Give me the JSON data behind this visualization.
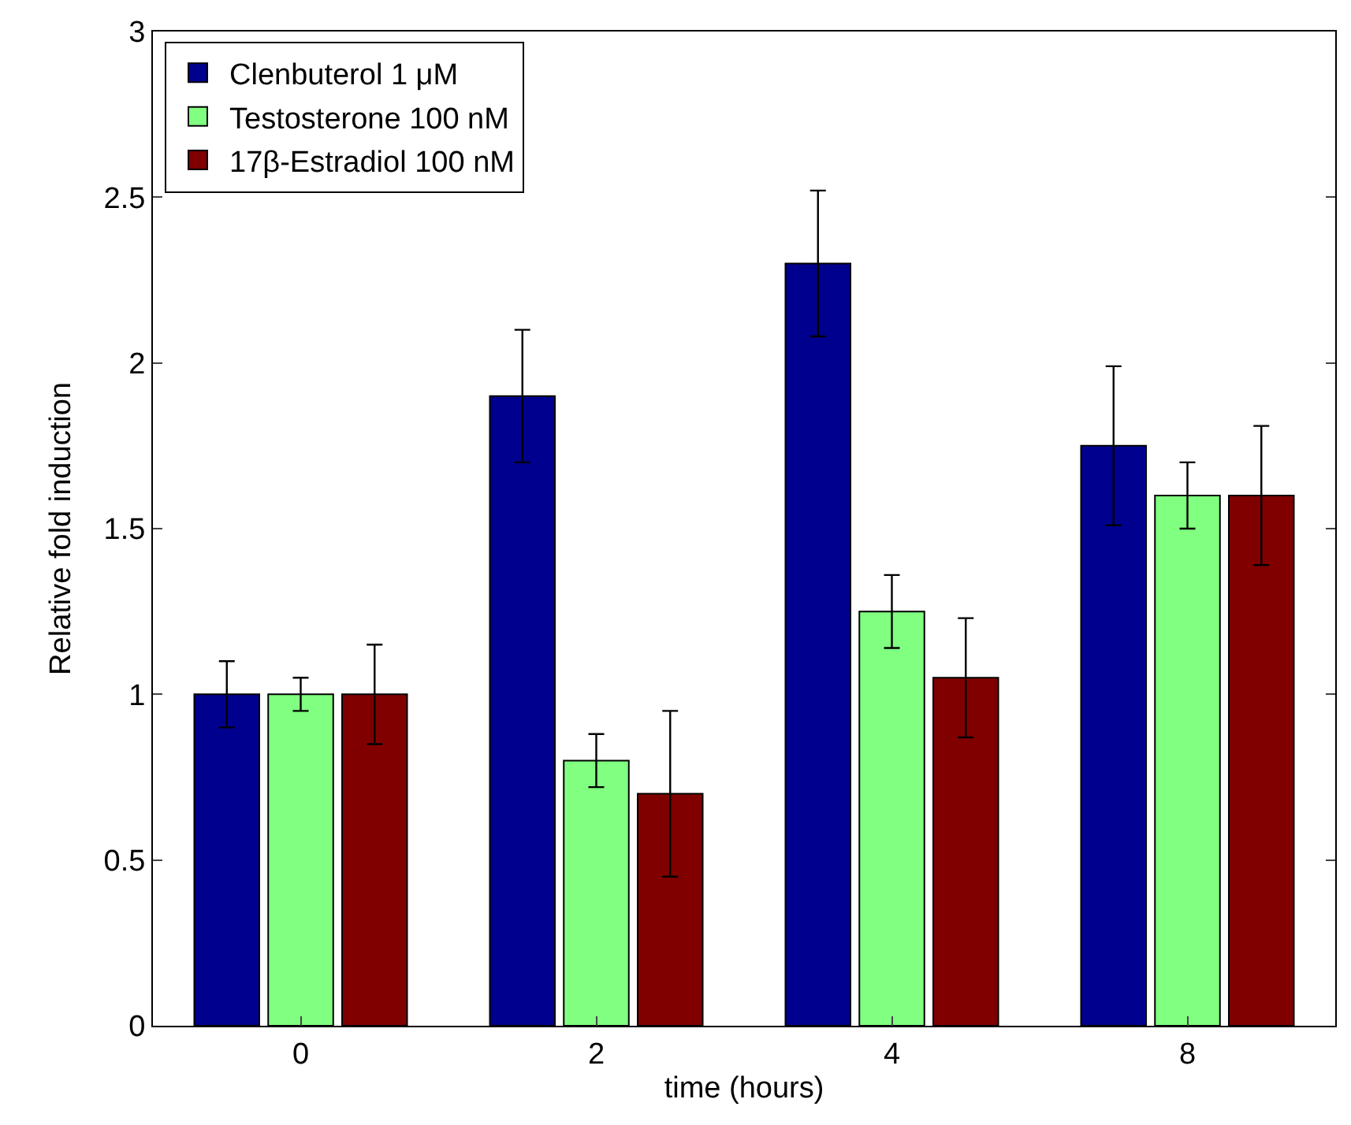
{
  "chart_data": {
    "type": "bar",
    "xlabel": "time (hours)",
    "ylabel": "Relative fold induction",
    "categories": [
      "0",
      "2",
      "4",
      "8"
    ],
    "series": [
      {
        "name": "Clenbuterol 1 μM",
        "color": "#00008f",
        "values": [
          1.0,
          1.9,
          2.3,
          1.75
        ],
        "errors": [
          [
            0.9,
            1.1
          ],
          [
            1.7,
            2.1
          ],
          [
            2.08,
            2.52
          ],
          [
            1.51,
            1.99
          ]
        ]
      },
      {
        "name": "Testosterone 100 nM",
        "color": "#80ff80",
        "values": [
          1.0,
          0.8,
          1.25,
          1.6
        ],
        "errors": [
          [
            0.95,
            1.05
          ],
          [
            0.72,
            0.88
          ],
          [
            1.14,
            1.36
          ],
          [
            1.5,
            1.7
          ]
        ]
      },
      {
        "name": "17β-Estradiol 100 nM",
        "color": "#800000",
        "values": [
          1.0,
          0.7,
          1.05,
          1.6
        ],
        "errors": [
          [
            0.85,
            1.15
          ],
          [
            0.45,
            0.95
          ],
          [
            0.87,
            1.23
          ],
          [
            1.39,
            1.81
          ]
        ]
      }
    ],
    "ylim": [
      0,
      3
    ],
    "yticks": [
      0,
      0.5,
      1,
      1.5,
      2,
      2.5,
      3
    ],
    "legend": "top left"
  }
}
